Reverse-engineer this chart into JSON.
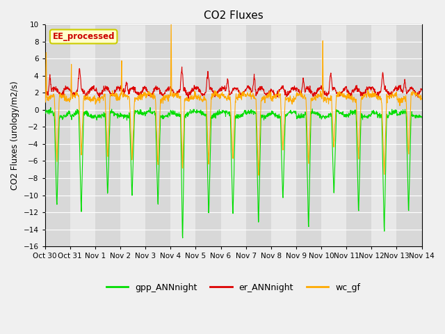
{
  "title": "CO2 Fluxes",
  "ylabel": "CO2 Fluxes (urology/m2/s)",
  "xlabel": "",
  "ylim": [
    -16,
    10
  ],
  "yticks": [
    -16,
    -14,
    -12,
    -10,
    -8,
    -6,
    -4,
    -2,
    0,
    2,
    4,
    6,
    8,
    10
  ],
  "background_color": "#f0f0f0",
  "plot_bg_color": "#e8e8e8",
  "annotation_text": "EE_processed",
  "annotation_color": "#cc0000",
  "annotation_bg": "#ffffcc",
  "annotation_border": "#cccc00",
  "series": [
    {
      "label": "gpp_ANNnight",
      "color": "#00dd00",
      "linewidth": 0.8
    },
    {
      "label": "er_ANNnight",
      "color": "#dd0000",
      "linewidth": 0.8
    },
    {
      "label": "wc_gf",
      "color": "#ffaa00",
      "linewidth": 0.8
    }
  ],
  "legend_ncol": 3,
  "figsize": [
    6.4,
    4.8
  ],
  "dpi": 100,
  "n_days": 15,
  "points_per_day": 96,
  "date_labels": [
    "Oct 30",
    "Oct 31",
    "Nov 1",
    "Nov 2",
    "Nov 3",
    "Nov 4",
    "Nov 5",
    "Nov 6",
    "Nov 7",
    "Nov 8",
    "Nov 9",
    "Nov 10",
    "Nov 11",
    "Nov 12",
    "Nov 13",
    "Nov 14"
  ],
  "gray_band_color": "#d8d8d8",
  "light_band_color": "#e8e8e8"
}
